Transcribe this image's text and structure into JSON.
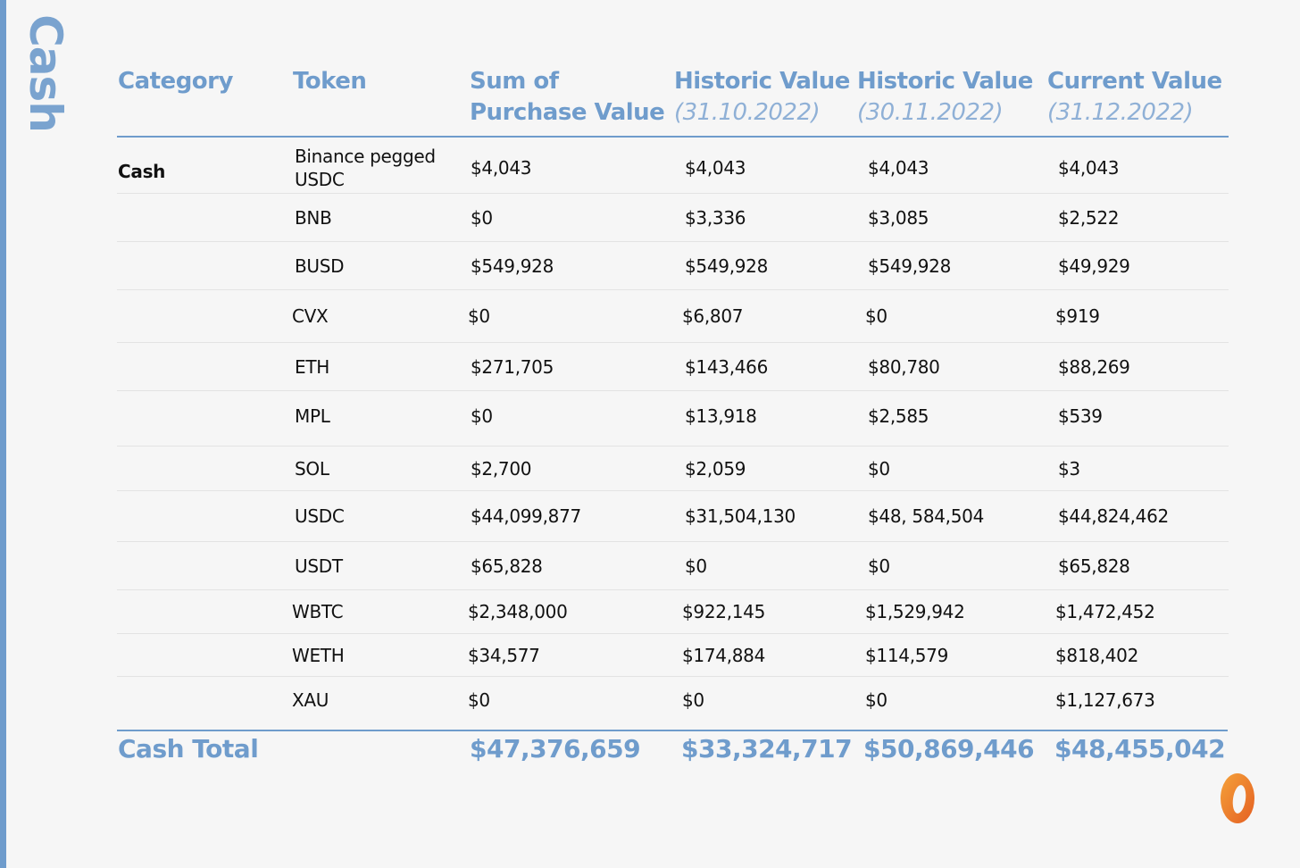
{
  "side_title": "Cash",
  "headers": {
    "category": "Category",
    "token": "Token",
    "purchase_line1": "Sum of",
    "purchase_line2": "Purchase Value",
    "hist1_title": "Historic Value",
    "hist1_date": "(31.10.2022)",
    "hist2_title": "Historic Value",
    "hist2_date": "(30.11.2022)",
    "current_title": "Current Value",
    "current_date": "(31.12.2022)"
  },
  "rows": [
    {
      "category": "Cash",
      "token": "Binance pegged USDC",
      "purchase": "$4,043",
      "hist1": "$4,043",
      "hist2": "$4,043",
      "current": "$4,043"
    },
    {
      "category": "",
      "token": "BNB",
      "purchase": "$0",
      "hist1": "$3,336",
      "hist2": "$3,085",
      "current": "$2,522"
    },
    {
      "category": "",
      "token": "BUSD",
      "purchase": "$549,928",
      "hist1": "$549,928",
      "hist2": "$549,928",
      "current": "$49,929"
    },
    {
      "category": "",
      "token": "CVX",
      "purchase": "$0",
      "hist1": "$6,807",
      "hist2": "$0",
      "current": "$919"
    },
    {
      "category": "",
      "token": "ETH",
      "purchase": "$271,705",
      "hist1": "$143,466",
      "hist2": "$80,780",
      "current": "$88,269"
    },
    {
      "category": "",
      "token": "MPL",
      "purchase": "$0",
      "hist1": "$13,918",
      "hist2": "$2,585",
      "current": "$539"
    },
    {
      "category": "",
      "token": "SOL",
      "purchase": "$2,700",
      "hist1": "$2,059",
      "hist2": "$0",
      "current": "$3"
    },
    {
      "category": "",
      "token": "USDC",
      "purchase": "$44,099,877",
      "hist1": "$31,504,130",
      "hist2": "$48, 584,504",
      "current": "$44,824,462"
    },
    {
      "category": "",
      "token": "USDT",
      "purchase": "$65,828",
      "hist1": "$0",
      "hist2": "$0",
      "current": "$65,828"
    },
    {
      "category": "",
      "token": "WBTC",
      "purchase": "$2,348,000",
      "hist1": "$922,145",
      "hist2": "$1,529,942",
      "current": "$1,472,452"
    },
    {
      "category": "",
      "token": "WETH",
      "purchase": "$34,577",
      "hist1": "$174,884",
      "hist2": "$114,579",
      "current": "$818,402"
    },
    {
      "category": "",
      "token": "XAU",
      "purchase": "$0",
      "hist1": "$0",
      "hist2": "$0",
      "current": "$1,127,673"
    }
  ],
  "totals": {
    "label": "Cash Total",
    "purchase": "$47,376,659",
    "hist1": "$33,324,717",
    "hist2": "$50,869,446",
    "current": "$48,455,042"
  },
  "colors": {
    "accent": "#6f9ccc",
    "logo_orange": "#e9772a"
  },
  "logo_icon": "orange-ring-logo"
}
